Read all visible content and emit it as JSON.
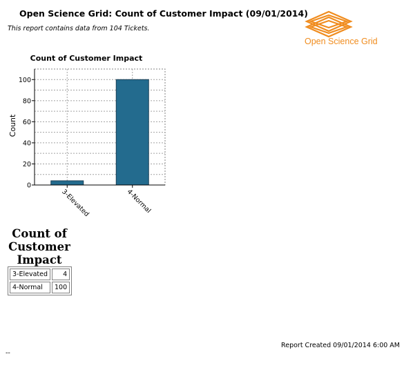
{
  "report": {
    "title": "Open Science Grid: Count of Customer Impact (09/01/2014)",
    "subtitle": "This report contains data from 104 Tickets.",
    "logo_text": "Open Science Grid",
    "logo_color": "#f08c1e"
  },
  "chart_data": {
    "type": "bar",
    "title": "Count of Customer Impact",
    "ylabel": "Count",
    "xlabel": "",
    "categories": [
      "3-Elevated",
      "4-Normal"
    ],
    "values": [
      4,
      100
    ],
    "ylim": [
      0,
      110
    ],
    "yticks": [
      0,
      20,
      40,
      60,
      80,
      100
    ],
    "grid": true,
    "bar_color": "#236b8e"
  },
  "summary": {
    "title_lines": [
      "Count of",
      "Customer",
      "Impact"
    ],
    "rows": [
      {
        "label": "3-Elevated",
        "value": "4"
      },
      {
        "label": "4-Normal",
        "value": "100"
      }
    ]
  },
  "footer": {
    "created": "Report Created 09/01/2014 6:00 AM",
    "dash": "--"
  }
}
